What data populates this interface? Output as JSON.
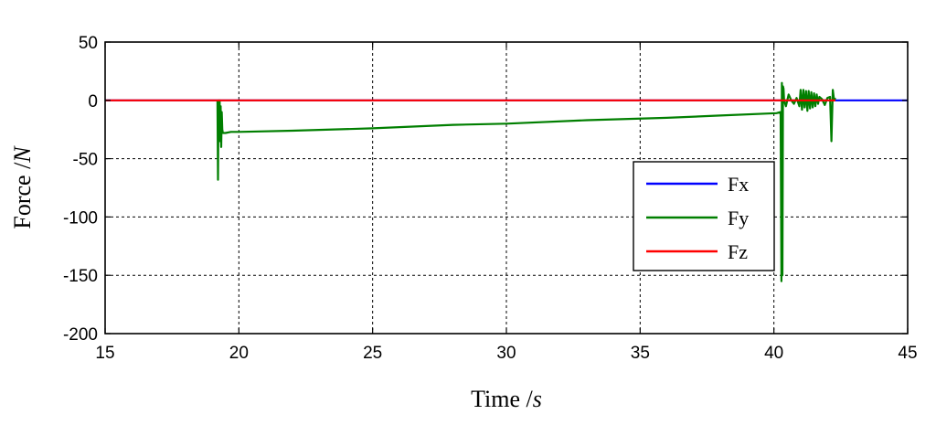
{
  "chart_data": {
    "type": "line",
    "title": "",
    "xlabel": {
      "text": "Time /",
      "unit": "s"
    },
    "ylabel": {
      "text": "Force /",
      "unit": "N"
    },
    "xlim": [
      15,
      45
    ],
    "ylim": [
      -200,
      50
    ],
    "xticks": [
      15,
      20,
      25,
      30,
      35,
      40,
      45
    ],
    "yticks": [
      -200,
      -150,
      -100,
      -50,
      0,
      50
    ],
    "grid": true,
    "grid_style": "dashed",
    "legend_position": "lower-right",
    "series": [
      {
        "name": "Fx",
        "color": "#0000ff",
        "x": [
          15,
          45
        ],
        "y": [
          0,
          0
        ]
      },
      {
        "name": "Fy",
        "color": "#007f00",
        "x": [
          19.2,
          19.22,
          19.24,
          19.26,
          19.28,
          19.3,
          19.32,
          19.34,
          19.36,
          19.38,
          19.4,
          19.5,
          19.7,
          20,
          22,
          25,
          28,
          30,
          33,
          36,
          38,
          40.1,
          40.25,
          40.28,
          40.3,
          40.32,
          40.34,
          40.36,
          40.38,
          40.45,
          40.55,
          40.65,
          40.75,
          40.85,
          40.95,
          41.0,
          41.05,
          41.1,
          41.15,
          41.2,
          41.25,
          41.3,
          41.35,
          41.4,
          41.45,
          41.5,
          41.55,
          41.6,
          41.65,
          41.7,
          41.8,
          41.9,
          42.0,
          42.1,
          42.15,
          42.2,
          42.25,
          42.3
        ],
        "y": [
          0,
          -68,
          0,
          -20,
          0,
          -35,
          -5,
          -40,
          -10,
          -25,
          -28,
          -28,
          -27,
          -27,
          -26,
          -24,
          -21,
          -20,
          -17,
          -15,
          -13,
          -11,
          -10,
          -155,
          15,
          -150,
          12,
          10,
          0,
          -5,
          5,
          0,
          -3,
          2,
          -5,
          9,
          -8,
          9,
          -6,
          8,
          -9,
          8,
          -7,
          7,
          -6,
          6,
          -5,
          5,
          -3,
          3,
          1,
          -4,
          2,
          3,
          -35,
          9,
          0,
          2
        ]
      },
      {
        "name": "Fz",
        "color": "#ff0000",
        "x": [
          15,
          42.3
        ],
        "y": [
          0,
          0
        ]
      }
    ]
  }
}
